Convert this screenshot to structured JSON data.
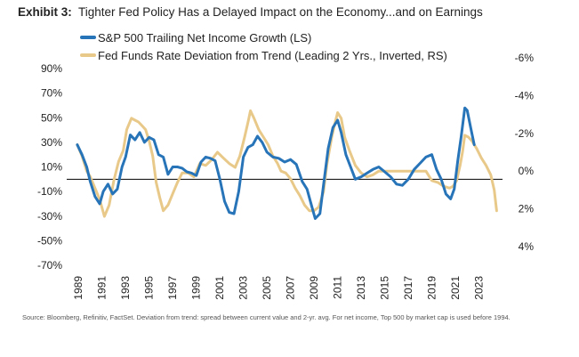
{
  "header": {
    "exhibit": "Exhibit 3:",
    "title": "Tighter Fed Policy Has a Delayed Impact on the Economy...and on Earnings"
  },
  "source": "Source: Bloomberg, Refinitiv, FactSet. Deviation from trend: spread between current value and 2-yr. avg. For net income, Top 500 by market cap is used before 1994.",
  "chart_data": {
    "type": "line",
    "xlim": [
      1988,
      2025
    ],
    "x_ticks": [
      "1989",
      "1991",
      "1993",
      "1995",
      "1997",
      "1999",
      "2001",
      "2003",
      "2005",
      "2007",
      "2009",
      "2011",
      "2013",
      "2015",
      "2017",
      "2019",
      "2021",
      "2023"
    ],
    "left_axis": {
      "ylim": [
        -70,
        90
      ],
      "ticks": [
        90,
        70,
        50,
        30,
        10,
        -10,
        -30,
        -50,
        -70
      ],
      "tick_labels": [
        "90%",
        "70%",
        "50%",
        "30%",
        "10%",
        "-10%",
        "-30%",
        "-50%",
        "-70%"
      ]
    },
    "right_axis": {
      "inverted": true,
      "ylim_top": -6,
      "ylim_bottom": 4,
      "ticks": [
        -6,
        -4,
        -2,
        0,
        2,
        4
      ],
      "tick_labels": [
        "-6%",
        "-4%",
        "-2%",
        "0%",
        "2%",
        "4%"
      ]
    },
    "zero_line": {
      "axis": "left",
      "value": 0
    },
    "grid": false,
    "legend_position": "top-left",
    "series": [
      {
        "name": "S&P 500 Trailing Net Income Growth (LS)",
        "axis": "left",
        "color": "#2874b8",
        "points": [
          [
            1988.9,
            28
          ],
          [
            1989.3,
            20
          ],
          [
            1989.7,
            10
          ],
          [
            1990.0,
            -2
          ],
          [
            1990.4,
            -14
          ],
          [
            1990.8,
            -20
          ],
          [
            1991.1,
            -10
          ],
          [
            1991.5,
            -4
          ],
          [
            1991.9,
            -12
          ],
          [
            1992.3,
            -8
          ],
          [
            1992.7,
            10
          ],
          [
            1993.0,
            18
          ],
          [
            1993.4,
            36
          ],
          [
            1993.8,
            32
          ],
          [
            1994.2,
            38
          ],
          [
            1994.6,
            30
          ],
          [
            1995.0,
            34
          ],
          [
            1995.4,
            32
          ],
          [
            1995.8,
            20
          ],
          [
            1996.2,
            18
          ],
          [
            1996.6,
            4
          ],
          [
            1997.0,
            10
          ],
          [
            1997.4,
            10
          ],
          [
            1997.8,
            9
          ],
          [
            1998.2,
            6
          ],
          [
            1998.6,
            5
          ],
          [
            1999.0,
            3
          ],
          [
            1999.4,
            14
          ],
          [
            1999.8,
            18
          ],
          [
            2000.2,
            17
          ],
          [
            2000.6,
            15
          ],
          [
            2001.0,
            0
          ],
          [
            2001.4,
            -18
          ],
          [
            2001.8,
            -27
          ],
          [
            2002.2,
            -28
          ],
          [
            2002.6,
            -10
          ],
          [
            2003.0,
            18
          ],
          [
            2003.4,
            26
          ],
          [
            2003.8,
            28
          ],
          [
            2004.2,
            35
          ],
          [
            2004.6,
            30
          ],
          [
            2005.0,
            22
          ],
          [
            2005.5,
            18
          ],
          [
            2006.0,
            17
          ],
          [
            2006.5,
            14
          ],
          [
            2007.0,
            16
          ],
          [
            2007.5,
            12
          ],
          [
            2008.0,
            -2
          ],
          [
            2008.4,
            -8
          ],
          [
            2008.8,
            -22
          ],
          [
            2009.1,
            -32
          ],
          [
            2009.5,
            -28
          ],
          [
            2009.8,
            -5
          ],
          [
            2010.2,
            25
          ],
          [
            2010.6,
            42
          ],
          [
            2011.0,
            48
          ],
          [
            2011.3,
            38
          ],
          [
            2011.7,
            20
          ],
          [
            2012.1,
            10
          ],
          [
            2012.5,
            0
          ],
          [
            2013.0,
            2
          ],
          [
            2013.5,
            5
          ],
          [
            2014.0,
            8
          ],
          [
            2014.5,
            10
          ],
          [
            2015.0,
            6
          ],
          [
            2015.5,
            2
          ],
          [
            2016.0,
            -4
          ],
          [
            2016.5,
            -5
          ],
          [
            2017.0,
            0
          ],
          [
            2017.5,
            8
          ],
          [
            2018.0,
            13
          ],
          [
            2018.5,
            18
          ],
          [
            2019.0,
            20
          ],
          [
            2019.4,
            8
          ],
          [
            2019.8,
            0
          ],
          [
            2020.2,
            -12
          ],
          [
            2020.6,
            -16
          ],
          [
            2020.9,
            -8
          ],
          [
            2021.2,
            15
          ],
          [
            2021.5,
            35
          ],
          [
            2021.8,
            58
          ],
          [
            2022.0,
            56
          ],
          [
            2022.3,
            42
          ],
          [
            2022.6,
            28
          ]
        ]
      },
      {
        "name": "Fed Funds Rate Deviation from Trend (Leading 2 Yrs., Inverted, RS)",
        "axis": "right",
        "color": "#e8c98a",
        "points": [
          [
            1988.9,
            -1.4
          ],
          [
            1989.3,
            -0.8
          ],
          [
            1989.7,
            0.0
          ],
          [
            1990.0,
            0.3
          ],
          [
            1990.4,
            0.9
          ],
          [
            1990.8,
            1.5
          ],
          [
            1991.2,
            2.4
          ],
          [
            1991.6,
            1.8
          ],
          [
            1992.0,
            0.5
          ],
          [
            1992.4,
            -0.5
          ],
          [
            1992.8,
            -1.1
          ],
          [
            1993.1,
            -2.2
          ],
          [
            1993.5,
            -2.8
          ],
          [
            1993.8,
            -2.7
          ],
          [
            1994.1,
            -2.6
          ],
          [
            1994.4,
            -2.4
          ],
          [
            1994.7,
            -2.2
          ],
          [
            1995.0,
            -1.6
          ],
          [
            1995.3,
            -0.8
          ],
          [
            1995.6,
            0.6
          ],
          [
            1995.9,
            1.4
          ],
          [
            1996.2,
            2.1
          ],
          [
            1996.6,
            1.8
          ],
          [
            1997.0,
            1.2
          ],
          [
            1997.4,
            0.6
          ],
          [
            1997.8,
            0.1
          ],
          [
            1998.3,
            0.1
          ],
          [
            1998.8,
            0.3
          ],
          [
            1999.3,
            -0.4
          ],
          [
            1999.8,
            -0.3
          ],
          [
            2000.3,
            -0.6
          ],
          [
            2000.8,
            -1.0
          ],
          [
            2001.3,
            -0.7
          ],
          [
            2001.8,
            -0.4
          ],
          [
            2002.3,
            -0.2
          ],
          [
            2002.7,
            -0.8
          ],
          [
            2003.1,
            -1.8
          ],
          [
            2003.4,
            -2.6
          ],
          [
            2003.6,
            -3.2
          ],
          [
            2003.9,
            -2.8
          ],
          [
            2004.3,
            -2.2
          ],
          [
            2004.7,
            -1.8
          ],
          [
            2005.1,
            -1.4
          ],
          [
            2005.5,
            -0.8
          ],
          [
            2005.9,
            -0.4
          ],
          [
            2006.2,
            0.0
          ],
          [
            2006.6,
            0.1
          ],
          [
            2007.0,
            0.4
          ],
          [
            2007.4,
            0.9
          ],
          [
            2007.8,
            1.3
          ],
          [
            2008.2,
            1.8
          ],
          [
            2008.6,
            2.1
          ],
          [
            2009.0,
            2.1
          ],
          [
            2009.4,
            1.9
          ],
          [
            2009.8,
            1.1
          ],
          [
            2010.1,
            -0.4
          ],
          [
            2010.5,
            -1.8
          ],
          [
            2010.8,
            -2.6
          ],
          [
            2011.0,
            -3.1
          ],
          [
            2011.3,
            -2.8
          ],
          [
            2011.6,
            -1.8
          ],
          [
            2012.0,
            -1.1
          ],
          [
            2012.5,
            -0.3
          ],
          [
            2013.0,
            0.1
          ],
          [
            2013.5,
            0.3
          ],
          [
            2014.0,
            0.2
          ],
          [
            2014.5,
            0.0
          ],
          [
            2015.0,
            0.0
          ],
          [
            2015.5,
            0.0
          ],
          [
            2016.0,
            0.0
          ],
          [
            2016.5,
            0.0
          ],
          [
            2017.0,
            0.0
          ],
          [
            2017.5,
            0.0
          ],
          [
            2018.0,
            0.0
          ],
          [
            2018.5,
            0.0
          ],
          [
            2019.0,
            0.5
          ],
          [
            2019.5,
            0.6
          ],
          [
            2020.0,
            0.8
          ],
          [
            2020.5,
            0.9
          ],
          [
            2020.8,
            0.8
          ],
          [
            2021.1,
            0.5
          ],
          [
            2021.4,
            -0.3
          ],
          [
            2021.6,
            -1.0
          ],
          [
            2021.8,
            -1.9
          ],
          [
            2022.1,
            -1.8
          ],
          [
            2022.4,
            -1.6
          ],
          [
            2022.8,
            -1.2
          ],
          [
            2023.2,
            -0.7
          ],
          [
            2023.6,
            -0.3
          ],
          [
            2024.0,
            0.2
          ],
          [
            2024.3,
            1.0
          ],
          [
            2024.5,
            2.1
          ]
        ]
      }
    ]
  }
}
